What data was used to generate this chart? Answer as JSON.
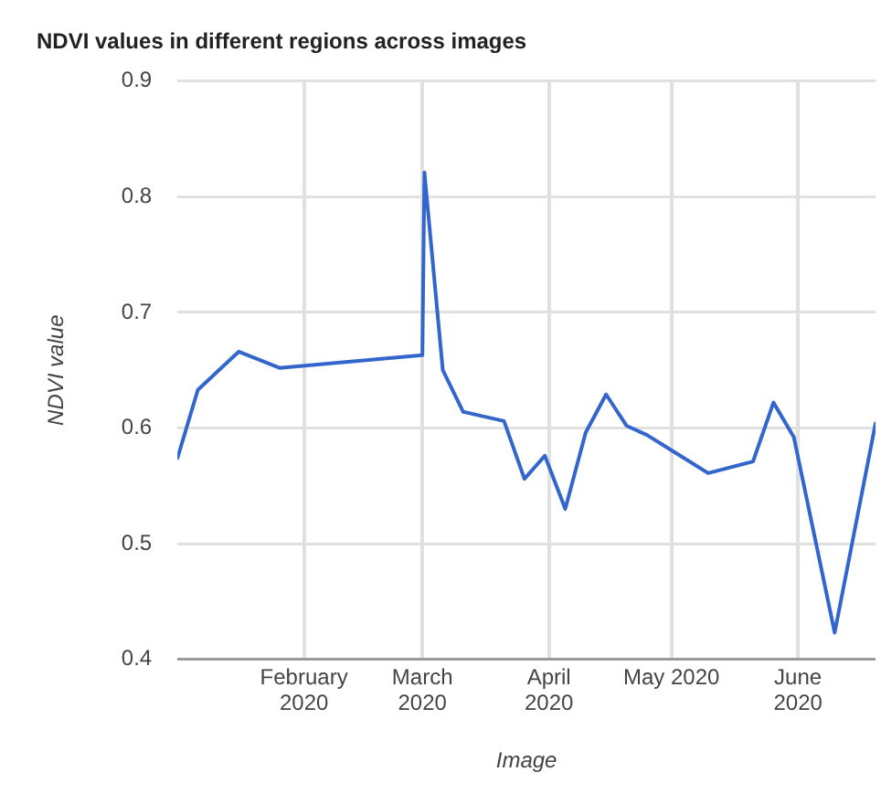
{
  "chart_data": {
    "type": "line",
    "title": "NDVI values in different regions across images",
    "xlabel": "Image",
    "ylabel": "NDVI value",
    "x": [
      "2020-01-01",
      "2020-01-06",
      "2020-01-16",
      "2020-01-26",
      "2020-03-01",
      "2020-03-01T12:00",
      "2020-03-06",
      "2020-03-11",
      "2020-03-21",
      "2020-03-26",
      "2020-03-31",
      "2020-04-05",
      "2020-04-10",
      "2020-04-15",
      "2020-04-20",
      "2020-04-25",
      "2020-04-30",
      "2020-05-10",
      "2020-05-21",
      "2020-05-26",
      "2020-05-31",
      "2020-06-10",
      "2020-06-20"
    ],
    "series": [
      {
        "color": "#3366cc",
        "values": [
          0.574,
          0.633,
          0.666,
          0.652,
          0.663,
          0.821,
          0.65,
          0.614,
          0.606,
          0.556,
          0.576,
          0.53,
          0.596,
          0.629,
          0.602,
          0.594,
          0.583,
          0.561,
          0.571,
          0.622,
          0.592,
          0.423,
          0.604
        ]
      }
    ],
    "xlim": [
      "2020-01-01",
      "2020-06-20"
    ],
    "xticks": [
      {
        "value": "2020-02-01",
        "label": "February\n2020"
      },
      {
        "value": "2020-03-01",
        "label": "March\n2020"
      },
      {
        "value": "2020-04-01",
        "label": "April\n2020"
      },
      {
        "value": "2020-05-01",
        "label": "May 2020"
      },
      {
        "value": "2020-06-01",
        "label": "June\n2020"
      }
    ],
    "ylim": [
      0.4,
      0.9
    ],
    "yticks": [
      0.4,
      0.5,
      0.6,
      0.7,
      0.8,
      0.9
    ],
    "grid": true,
    "legend": false,
    "marker": "none",
    "line_style": "solid"
  }
}
